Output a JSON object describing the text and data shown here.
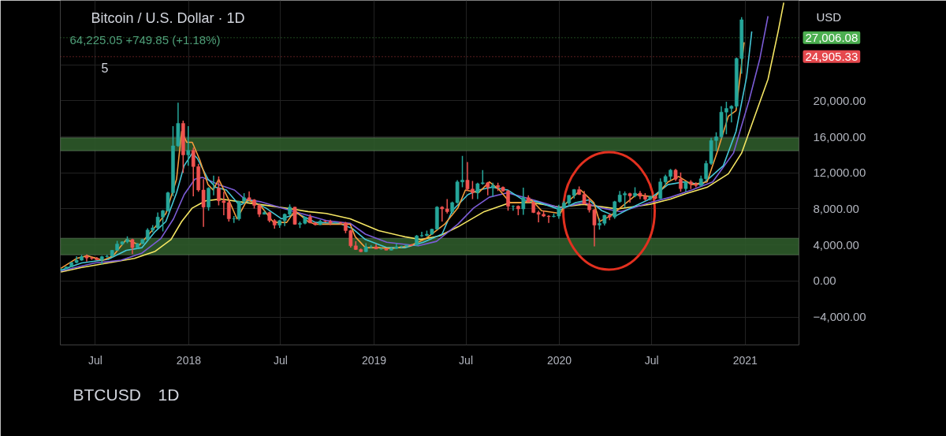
{
  "chart_data": {
    "type": "candlestick",
    "title": "Bitcoin / U.S. Dollar · 1D",
    "subtitle": "64,225.05 +749.85 (+1.18%)",
    "annotations": [
      "5",
      "USD",
      "BTCUSD",
      "1D"
    ],
    "xlim": [
      "2017-04-23",
      "2021-04-17"
    ],
    "ylim": [
      -7100,
      31150
    ],
    "xticks": [
      {
        "value": "2017-07-01",
        "label": "Jul"
      },
      {
        "value": "2018-01-01",
        "label": "2018"
      },
      {
        "value": "2018-07-01",
        "label": "Jul"
      },
      {
        "value": "2019-01-01",
        "label": "2019"
      },
      {
        "value": "2019-07-01",
        "label": "Jul"
      },
      {
        "value": "2020-01-01",
        "label": "2020"
      },
      {
        "value": "2020-07-01",
        "label": "Jul"
      },
      {
        "value": "2021-01-01",
        "label": "2021"
      }
    ],
    "yticks": [
      {
        "value": -4000,
        "label": "−4,000.00"
      },
      {
        "value": 0,
        "label": "0.00"
      },
      {
        "value": 4000,
        "label": "4,000.00"
      },
      {
        "value": 8000,
        "label": "8,000.00"
      },
      {
        "value": 12000,
        "label": "12,000.00"
      },
      {
        "value": 16000,
        "label": "16,000.00"
      },
      {
        "value": 20000,
        "label": "20,000.00"
      },
      {
        "value": 24000,
        "label": null
      }
    ],
    "grid": true,
    "bands": [
      {
        "axis": "y",
        "from": 2900,
        "to": 4730,
        "color": "#2e5a2a"
      },
      {
        "axis": "y",
        "from": 14450,
        "to": 15890,
        "color": "#2e5a2a"
      }
    ],
    "ref_lines": [
      {
        "axis": "y",
        "value": 27006.08,
        "label": "27,006.08",
        "color": "#4caf50"
      },
      {
        "axis": "y",
        "value": 24905.33,
        "label": "24,905.33",
        "color": "#e5484d"
      }
    ],
    "x": [
      "2017-04-25",
      "2017-05-05",
      "2017-05-15",
      "2017-05-25",
      "2017-06-04",
      "2017-06-14",
      "2017-06-24",
      "2017-07-04",
      "2017-07-14",
      "2017-07-24",
      "2017-08-03",
      "2017-08-13",
      "2017-08-23",
      "2017-09-02",
      "2017-09-12",
      "2017-09-22",
      "2017-10-02",
      "2017-10-12",
      "2017-10-22",
      "2017-11-01",
      "2017-11-11",
      "2017-11-21",
      "2017-12-01",
      "2017-12-11",
      "2017-12-21",
      "2017-12-31",
      "2018-01-10",
      "2018-01-20",
      "2018-01-30",
      "2018-02-09",
      "2018-02-19",
      "2018-03-01",
      "2018-03-11",
      "2018-03-21",
      "2018-03-31",
      "2018-04-10",
      "2018-04-20",
      "2018-04-30",
      "2018-05-10",
      "2018-05-20",
      "2018-05-30",
      "2018-06-09",
      "2018-06-19",
      "2018-06-29",
      "2018-07-09",
      "2018-07-19",
      "2018-07-29",
      "2018-08-08",
      "2018-08-18",
      "2018-08-28",
      "2018-09-07",
      "2018-09-17",
      "2018-09-27",
      "2018-10-07",
      "2018-10-17",
      "2018-10-27",
      "2018-11-06",
      "2018-11-16",
      "2018-11-26",
      "2018-12-06",
      "2018-12-16",
      "2018-12-26",
      "2019-01-05",
      "2019-01-15",
      "2019-01-25",
      "2019-02-04",
      "2019-02-14",
      "2019-02-24",
      "2019-03-06",
      "2019-03-16",
      "2019-03-26",
      "2019-04-05",
      "2019-04-15",
      "2019-04-25",
      "2019-05-05",
      "2019-05-15",
      "2019-05-25",
      "2019-06-04",
      "2019-06-14",
      "2019-06-24",
      "2019-07-04",
      "2019-07-14",
      "2019-07-24",
      "2019-08-03",
      "2019-08-13",
      "2019-08-23",
      "2019-09-02",
      "2019-09-12",
      "2019-09-22",
      "2019-10-02",
      "2019-10-12",
      "2019-10-22",
      "2019-11-01",
      "2019-11-11",
      "2019-11-21",
      "2019-12-01",
      "2019-12-11",
      "2019-12-21",
      "2019-12-31",
      "2020-01-10",
      "2020-01-20",
      "2020-01-30",
      "2020-02-09",
      "2020-02-19",
      "2020-02-29",
      "2020-03-10",
      "2020-03-20",
      "2020-03-30",
      "2020-04-09",
      "2020-04-19",
      "2020-04-29",
      "2020-05-09",
      "2020-05-19",
      "2020-05-29",
      "2020-06-08",
      "2020-06-18",
      "2020-06-28",
      "2020-07-08",
      "2020-07-18",
      "2020-07-28",
      "2020-08-07",
      "2020-08-17",
      "2020-08-27",
      "2020-09-06",
      "2020-09-16",
      "2020-09-26",
      "2020-10-06",
      "2020-10-16",
      "2020-10-26",
      "2020-11-05",
      "2020-11-15",
      "2020-11-25",
      "2020-12-05",
      "2020-12-15",
      "2020-12-25"
    ],
    "ohlc": [
      [
        1230,
        1350,
        1200,
        1330
      ],
      [
        1330,
        1620,
        1320,
        1560
      ],
      [
        1560,
        2100,
        1550,
        2050
      ],
      [
        2050,
        2750,
        1950,
        2300
      ],
      [
        2300,
        2900,
        2250,
        2700
      ],
      [
        2700,
        2950,
        2150,
        2550
      ],
      [
        2550,
        2700,
        2350,
        2500
      ],
      [
        2500,
        2650,
        2300,
        2350
      ],
      [
        2350,
        2800,
        1850,
        2700
      ],
      [
        2700,
        2900,
        2600,
        2750
      ],
      [
        2750,
        3450,
        2700,
        3400
      ],
      [
        3400,
        4450,
        3350,
        4100
      ],
      [
        4100,
        4400,
        3950,
        4350
      ],
      [
        4350,
        4950,
        4200,
        4600
      ],
      [
        4600,
        4700,
        2980,
        3700
      ],
      [
        3700,
        4200,
        3600,
        4150
      ],
      [
        4150,
        4650,
        4100,
        4600
      ],
      [
        4600,
        5850,
        4550,
        5650
      ],
      [
        5650,
        6200,
        5400,
        5900
      ],
      [
        5900,
        7600,
        5800,
        7100
      ],
      [
        7100,
        7900,
        5500,
        7800
      ],
      [
        7800,
        9900,
        7700,
        9800
      ],
      [
        9800,
        17200,
        9400,
        15000
      ],
      [
        15000,
        19800,
        14900,
        17500
      ],
      [
        17500,
        17800,
        12000,
        14000
      ],
      [
        14000,
        17200,
        12800,
        14500
      ],
      [
        14500,
        14800,
        9400,
        12700
      ],
      [
        12700,
        13000,
        9900,
        10100
      ],
      [
        10100,
        11300,
        6000,
        8200
      ],
      [
        8200,
        10400,
        7800,
        10300
      ],
      [
        10300,
        11700,
        9500,
        10300
      ],
      [
        10300,
        11600,
        8400,
        8900
      ],
      [
        8900,
        9900,
        7300,
        8700
      ],
      [
        8700,
        9000,
        6600,
        6900
      ],
      [
        6900,
        7200,
        6450,
        6900
      ],
      [
        6900,
        8900,
        6700,
        8850
      ],
      [
        8850,
        9750,
        8600,
        9250
      ],
      [
        9250,
        9950,
        9000,
        9000
      ],
      [
        9000,
        9100,
        8050,
        8400
      ],
      [
        8400,
        8500,
        7100,
        7400
      ],
      [
        7400,
        7800,
        7400,
        7600
      ],
      [
        7600,
        7700,
        6500,
        6700
      ],
      [
        6700,
        6850,
        5800,
        6200
      ],
      [
        6200,
        6800,
        5900,
        6700
      ],
      [
        6700,
        7500,
        6100,
        7400
      ],
      [
        7400,
        8500,
        7300,
        8200
      ],
      [
        8200,
        8250,
        6250,
        6300
      ],
      [
        6300,
        6600,
        5880,
        6400
      ],
      [
        6400,
        7100,
        6300,
        7100
      ],
      [
        7100,
        7400,
        6400,
        6450
      ],
      [
        6450,
        6550,
        6150,
        6250
      ],
      [
        6250,
        6800,
        6200,
        6650
      ],
      [
        6650,
        6700,
        6500,
        6600
      ],
      [
        6600,
        6800,
        6200,
        6450
      ],
      [
        6450,
        6550,
        6400,
        6480
      ],
      [
        6480,
        6550,
        6300,
        6450
      ],
      [
        6450,
        6550,
        5300,
        5600
      ],
      [
        5600,
        5700,
        3700,
        3900
      ],
      [
        3900,
        4400,
        3450,
        3500
      ],
      [
        3500,
        3600,
        3200,
        3250
      ],
      [
        3250,
        4200,
        3200,
        3800
      ],
      [
        3800,
        4000,
        3600,
        3800
      ],
      [
        3800,
        4100,
        3550,
        3550
      ],
      [
        3550,
        3700,
        3500,
        3550
      ],
      [
        3550,
        3600,
        3400,
        3420
      ],
      [
        3420,
        3700,
        3380,
        3600
      ],
      [
        3600,
        4200,
        3580,
        3800
      ],
      [
        3800,
        3900,
        3700,
        3850
      ],
      [
        3850,
        4000,
        3800,
        4000
      ],
      [
        4000,
        4100,
        3930,
        3950
      ],
      [
        3950,
        5100,
        3930,
        5000
      ],
      [
        5000,
        5450,
        4900,
        5050
      ],
      [
        5050,
        5600,
        4950,
        5200
      ],
      [
        5200,
        5800,
        5100,
        5750
      ],
      [
        5750,
        8300,
        5700,
        8200
      ],
      [
        8200,
        8300,
        6600,
        8000
      ],
      [
        8000,
        9100,
        7500,
        7700
      ],
      [
        7700,
        8800,
        7450,
        8700
      ],
      [
        8700,
        11200,
        8600,
        11000
      ],
      [
        11000,
        13880,
        10400,
        11200
      ],
      [
        11200,
        13200,
        10000,
        10200
      ],
      [
        10200,
        11100,
        9100,
        9800
      ],
      [
        9800,
        10900,
        9100,
        10800
      ],
      [
        10800,
        12300,
        10700,
        10900
      ],
      [
        10900,
        11000,
        9500,
        10400
      ],
      [
        10400,
        10900,
        9350,
        10600
      ],
      [
        10600,
        10900,
        10000,
        10400
      ],
      [
        10400,
        10500,
        9900,
        10000
      ],
      [
        10000,
        10100,
        7800,
        8300
      ],
      [
        8300,
        8400,
        7800,
        8300
      ],
      [
        8300,
        8400,
        7300,
        8000
      ],
      [
        8000,
        10370,
        7350,
        9250
      ],
      [
        9250,
        9500,
        8700,
        8750
      ],
      [
        8750,
        8850,
        7550,
        7600
      ],
      [
        7600,
        7800,
        6500,
        7400
      ],
      [
        7400,
        7800,
        7100,
        7200
      ],
      [
        7200,
        7300,
        6450,
        7150
      ],
      [
        7150,
        7500,
        7050,
        7200
      ],
      [
        7200,
        8450,
        6900,
        8150
      ],
      [
        8150,
        8900,
        8000,
        8650
      ],
      [
        8650,
        9550,
        8350,
        9500
      ],
      [
        9500,
        10200,
        9150,
        10150
      ],
      [
        10150,
        10500,
        9550,
        9600
      ],
      [
        9600,
        10000,
        8500,
        8550
      ],
      [
        8550,
        9200,
        7600,
        7900
      ],
      [
        7900,
        8000,
        3850,
        6200
      ],
      [
        6200,
        6950,
        5700,
        6400
      ],
      [
        6400,
        7350,
        6150,
        7300
      ],
      [
        7300,
        7450,
        6750,
        7100
      ],
      [
        7100,
        8900,
        6900,
        8800
      ],
      [
        8800,
        10000,
        8700,
        9550
      ],
      [
        9550,
        9950,
        8150,
        9700
      ],
      [
        9700,
        9800,
        8700,
        9450
      ],
      [
        9450,
        10400,
        9300,
        9750
      ],
      [
        9750,
        10000,
        9100,
        9400
      ],
      [
        9400,
        9750,
        8900,
        9100
      ],
      [
        9100,
        9450,
        8950,
        9400
      ],
      [
        9400,
        9450,
        9050,
        9150
      ],
      [
        9150,
        11400,
        9100,
        11000
      ],
      [
        11000,
        11800,
        10600,
        11600
      ],
      [
        11600,
        12450,
        11200,
        12300
      ],
      [
        12300,
        12450,
        11100,
        11300
      ],
      [
        11300,
        12050,
        9900,
        10250
      ],
      [
        10250,
        11050,
        9900,
        11000
      ],
      [
        11000,
        11200,
        10200,
        10750
      ],
      [
        10750,
        10950,
        10400,
        10600
      ],
      [
        10600,
        11700,
        10500,
        11350
      ],
      [
        11350,
        13350,
        11200,
        13050
      ],
      [
        13050,
        15900,
        12900,
        15600
      ],
      [
        15600,
        16500,
        14400,
        16000
      ],
      [
        16000,
        19400,
        15800,
        18750
      ],
      [
        18750,
        19900,
        16300,
        19150
      ],
      [
        19150,
        19500,
        17600,
        19400
      ],
      [
        19400,
        24800,
        19200,
        24700
      ],
      [
        24700,
        29300,
        23000,
        29000
      ]
    ],
    "colors": [
      "#26a69a",
      "#26a69a",
      "#26a69a",
      "#26a69a",
      "#26a69a",
      "#ef5350",
      "#ef5350",
      "#ef5350",
      "#26a69a",
      "#26a69a",
      "#26a69a",
      "#26a69a",
      "#26a69a",
      "#26a69a",
      "#ef5350",
      "#26a69a",
      "#26a69a",
      "#26a69a",
      "#26a69a",
      "#26a69a",
      "#26a69a",
      "#26a69a",
      "#26a69a",
      "#26a69a",
      "#ef5350",
      "#26a69a",
      "#ef5350",
      "#ef5350",
      "#ef5350",
      "#26a69a",
      "#26a69a",
      "#ef5350",
      "#ef5350",
      "#ef5350",
      "#26a69a",
      "#26a69a",
      "#26a69a",
      "#ef5350",
      "#ef5350",
      "#ef5350",
      "#26a69a",
      "#ef5350",
      "#ef5350",
      "#26a69a",
      "#26a69a",
      "#26a69a",
      "#ef5350",
      "#26a69a",
      "#26a69a",
      "#ef5350",
      "#ef5350",
      "#26a69a",
      "#ef5350",
      "#ef5350",
      "#26a69a",
      "#ef5350",
      "#ef5350",
      "#ef5350",
      "#ef5350",
      "#ef5350",
      "#26a69a",
      "#26a69a",
      "#ef5350",
      "#26a69a",
      "#ef5350",
      "#26a69a",
      "#26a69a",
      "#26a69a",
      "#26a69a",
      "#ef5350",
      "#26a69a",
      "#26a69a",
      "#26a69a",
      "#26a69a",
      "#26a69a",
      "#ef5350",
      "#ef5350",
      "#26a69a",
      "#26a69a",
      "#26a69a",
      "#ef5350",
      "#ef5350",
      "#26a69a",
      "#26a69a",
      "#ef5350",
      "#26a69a",
      "#ef5350",
      "#ef5350",
      "#ef5350",
      "#26a69a",
      "#ef5350",
      "#26a69a",
      "#ef5350",
      "#ef5350",
      "#ef5350",
      "#ef5350",
      "#ef5350",
      "#26a69a",
      "#26a69a",
      "#26a69a",
      "#26a69a",
      "#26a69a",
      "#ef5350",
      "#ef5350",
      "#ef5350",
      "#ef5350",
      "#26a69a",
      "#26a69a",
      "#ef5350",
      "#26a69a",
      "#26a69a",
      "#26a69a",
      "#ef5350",
      "#26a69a",
      "#ef5350",
      "#ef5350",
      "#26a69a",
      "#ef5350",
      "#26a69a",
      "#26a69a",
      "#26a69a",
      "#ef5350",
      "#ef5350",
      "#26a69a",
      "#ef5350",
      "#ef5350",
      "#26a69a",
      "#26a69a",
      "#26a69a",
      "#26a69a",
      "#26a69a",
      "#26a69a",
      "#26a69a",
      "#26a69a",
      "#26a69a"
    ],
    "series": [
      {
        "type": "line",
        "color": "#f5e663",
        "x": [
          "2017-04-24",
          "2017-06-04",
          "2017-07-26",
          "2017-09-16",
          "2017-10-27",
          "2017-11-27",
          "2017-12-18",
          "2018-01-08",
          "2018-02-03",
          "2018-03-06",
          "2018-04-11",
          "2018-06-02",
          "2018-07-23",
          "2018-08-24",
          "2018-09-29",
          "2018-11-15",
          "2019-01-10",
          "2019-03-03",
          "2019-04-03",
          "2019-05-10",
          "2019-06-15",
          "2019-08-06",
          "2019-09-26",
          "2019-11-07",
          "2020-01-03",
          "2020-02-17",
          "2020-04-25",
          "2020-06-27",
          "2020-08-07",
          "2020-09-07",
          "2020-10-18",
          "2020-11-29",
          "2020-12-25",
          "2021-01-20",
          "2021-02-15",
          "2021-03-07",
          "2021-03-18"
        ],
        "values": [
          1000,
          1500,
          2000,
          2500,
          3300,
          4600,
          6600,
          8100,
          8900,
          9100,
          8800,
          8400,
          8000,
          7700,
          7500,
          6900,
          5600,
          4900,
          4600,
          5000,
          6000,
          7700,
          8700,
          8700,
          8200,
          8500,
          8000,
          8500,
          9100,
          9700,
          10400,
          11900,
          14200,
          18300,
          22400,
          27700,
          30900
        ]
      },
      {
        "type": "line",
        "color": "#7b5cd6",
        "x": [
          "2017-04-24",
          "2017-06-30",
          "2017-08-21",
          "2017-10-01",
          "2017-11-07",
          "2017-12-02",
          "2017-12-23",
          "2018-01-13",
          "2018-01-28",
          "2018-03-01",
          "2018-04-01",
          "2018-04-21",
          "2018-05-22",
          "2018-07-03",
          "2018-08-16",
          "2018-09-29",
          "2018-11-15",
          "2018-12-15",
          "2019-01-26",
          "2019-03-29",
          "2019-05-04",
          "2019-06-15",
          "2019-07-16",
          "2019-08-16",
          "2019-09-21",
          "2019-10-22",
          "2019-11-17",
          "2020-01-03",
          "2020-02-17",
          "2020-03-25",
          "2020-05-01",
          "2020-06-27",
          "2020-08-07",
          "2020-09-18",
          "2020-10-29",
          "2020-12-09",
          "2021-01-09",
          "2021-01-30",
          "2021-02-15"
        ],
        "values": [
          1100,
          2000,
          2300,
          3100,
          4700,
          6900,
          9600,
          11300,
          11500,
          10700,
          10100,
          9100,
          8800,
          8100,
          7400,
          6700,
          6400,
          5200,
          4300,
          3900,
          4400,
          6300,
          8100,
          9300,
          9800,
          9300,
          8900,
          8100,
          8700,
          8100,
          7700,
          8700,
          9300,
          10100,
          11000,
          14200,
          20100,
          24700,
          29400
        ]
      },
      {
        "type": "line",
        "color": "#45c7d6",
        "x": [
          "2017-04-24",
          "2017-06-04",
          "2017-07-26",
          "2017-08-31",
          "2017-10-01",
          "2017-10-27",
          "2017-11-17",
          "2017-12-08",
          "2017-12-23",
          "2018-01-08",
          "2018-01-18",
          "2018-02-08",
          "2018-02-23",
          "2018-03-16",
          "2018-04-11",
          "2018-05-02",
          "2018-06-02",
          "2018-07-03",
          "2018-08-03",
          "2018-08-24",
          "2018-09-08",
          "2018-10-25",
          "2018-11-20",
          "2018-12-15",
          "2019-01-26",
          "2019-03-03",
          "2019-04-08",
          "2019-05-15",
          "2019-06-04",
          "2019-07-05",
          "2019-07-26",
          "2019-08-21",
          "2019-09-21",
          "2019-10-22",
          "2019-11-17",
          "2020-01-03",
          "2020-02-02",
          "2020-02-28",
          "2020-03-25",
          "2020-04-20",
          "2020-05-21",
          "2020-06-27",
          "2020-08-02",
          "2020-09-02",
          "2020-10-08",
          "2020-11-19",
          "2020-12-14",
          "2021-01-04",
          "2021-01-14"
        ],
        "values": [
          1200,
          2000,
          2400,
          3400,
          3700,
          5500,
          6600,
          9800,
          12800,
          14200,
          13600,
          11300,
          10400,
          10100,
          8400,
          9000,
          8100,
          6900,
          7500,
          6900,
          6500,
          6400,
          5800,
          4600,
          3700,
          3700,
          4300,
          5200,
          7800,
          9600,
          10100,
          10400,
          10100,
          9000,
          8800,
          7900,
          8700,
          9000,
          7800,
          7200,
          8100,
          9100,
          10700,
          11000,
          10700,
          12800,
          16600,
          22700,
          27700
        ]
      },
      {
        "type": "line",
        "color": "#f39c3c",
        "x": [
          "2017-04-24",
          "2017-05-25",
          "2017-06-15",
          "2017-07-16",
          "2017-08-05",
          "2017-08-31",
          "2017-09-26",
          "2017-10-27",
          "2017-11-17",
          "2017-12-08",
          "2017-12-18",
          "2017-12-28",
          "2018-01-08",
          "2018-01-23",
          "2018-02-08",
          "2018-02-18",
          "2018-03-01",
          "2018-03-21",
          "2018-04-06",
          "2018-04-26",
          "2018-05-22",
          "2018-06-17",
          "2018-07-13",
          "2018-07-29",
          "2018-08-24",
          "2018-09-08",
          "2018-10-25",
          "2018-11-15",
          "2018-11-25",
          "2018-12-15",
          "2019-01-10",
          "2019-02-05",
          "2019-03-13",
          "2019-04-13",
          "2019-05-20",
          "2019-06-15",
          "2019-06-30",
          "2019-07-26",
          "2019-08-16",
          "2019-09-05",
          "2019-09-26",
          "2019-10-22",
          "2019-11-07",
          "2019-11-27",
          "2020-01-03",
          "2020-01-12",
          "2020-02-12",
          "2020-03-09",
          "2020-03-20",
          "2020-04-10",
          "2020-05-06",
          "2020-06-01",
          "2020-07-07",
          "2020-08-02",
          "2020-08-23",
          "2020-09-18",
          "2020-10-18",
          "2020-11-08",
          "2020-11-29",
          "2020-12-14",
          "2020-12-30"
        ],
        "values": [
          1400,
          2500,
          2800,
          2300,
          2800,
          4600,
          4000,
          6000,
          7500,
          11300,
          16600,
          15400,
          15400,
          13400,
          10700,
          10100,
          11300,
          9000,
          6900,
          9000,
          8400,
          6500,
          6500,
          7800,
          6600,
          6300,
          6300,
          6300,
          4900,
          3700,
          3700,
          3600,
          3900,
          4700,
          6300,
          8100,
          10100,
          9800,
          11000,
          10100,
          8700,
          8700,
          9000,
          7800,
          7500,
          8500,
          10100,
          8700,
          6600,
          7200,
          8400,
          9600,
          9300,
          11000,
          11600,
          10700,
          11000,
          14500,
          18300,
          18900,
          26500
        ]
      }
    ]
  }
}
